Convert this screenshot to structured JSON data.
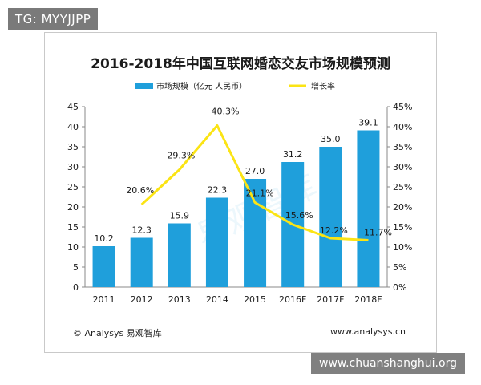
{
  "badge_top": "TG: MYYJJPP",
  "badge_bottom": "www.chuanshanghui.org",
  "source_left": "© Analysys 易观智库",
  "source_right": "www.analysys.cn",
  "watermark": "易观智库",
  "colors": {
    "bar": "#1f9fdb",
    "line": "#fbe414",
    "text": "#1a1a1a"
  },
  "chart_data": {
    "type": "bar",
    "title": "2016-2018年中国互联网婚恋交友市场规模预测",
    "categories": [
      "2011",
      "2012",
      "2013",
      "2014",
      "2015",
      "2016F",
      "2017F",
      "2018F"
    ],
    "series": [
      {
        "name": "市场规模（亿元 人民币）",
        "type": "bar",
        "axis": "left",
        "values": [
          10.2,
          12.3,
          15.9,
          22.3,
          27.0,
          31.2,
          35.0,
          39.1
        ],
        "labels": [
          "10.2",
          "12.3",
          "15.9",
          "22.3",
          "27.0",
          "31.2",
          "35.0",
          "39.1"
        ]
      },
      {
        "name": "增长率",
        "type": "line",
        "axis": "right",
        "values": [
          null,
          20.6,
          29.3,
          40.3,
          21.1,
          15.6,
          12.2,
          11.7
        ],
        "labels": [
          "",
          "20.6%",
          "29.3%",
          "40.3%",
          "21.1%",
          "15.6%",
          "12.2%",
          "11.7%"
        ]
      }
    ],
    "y_left": {
      "min": 0,
      "max": 45,
      "ticks": [
        "0",
        "5",
        "10",
        "15",
        "20",
        "25",
        "30",
        "35",
        "40",
        "45"
      ]
    },
    "y_right": {
      "min": 0,
      "max": 45,
      "ticks": [
        "0%",
        "5%",
        "10%",
        "15%",
        "20%",
        "25%",
        "30%",
        "35%",
        "40%",
        "45%"
      ]
    },
    "grid": false,
    "legend": "top-center"
  }
}
